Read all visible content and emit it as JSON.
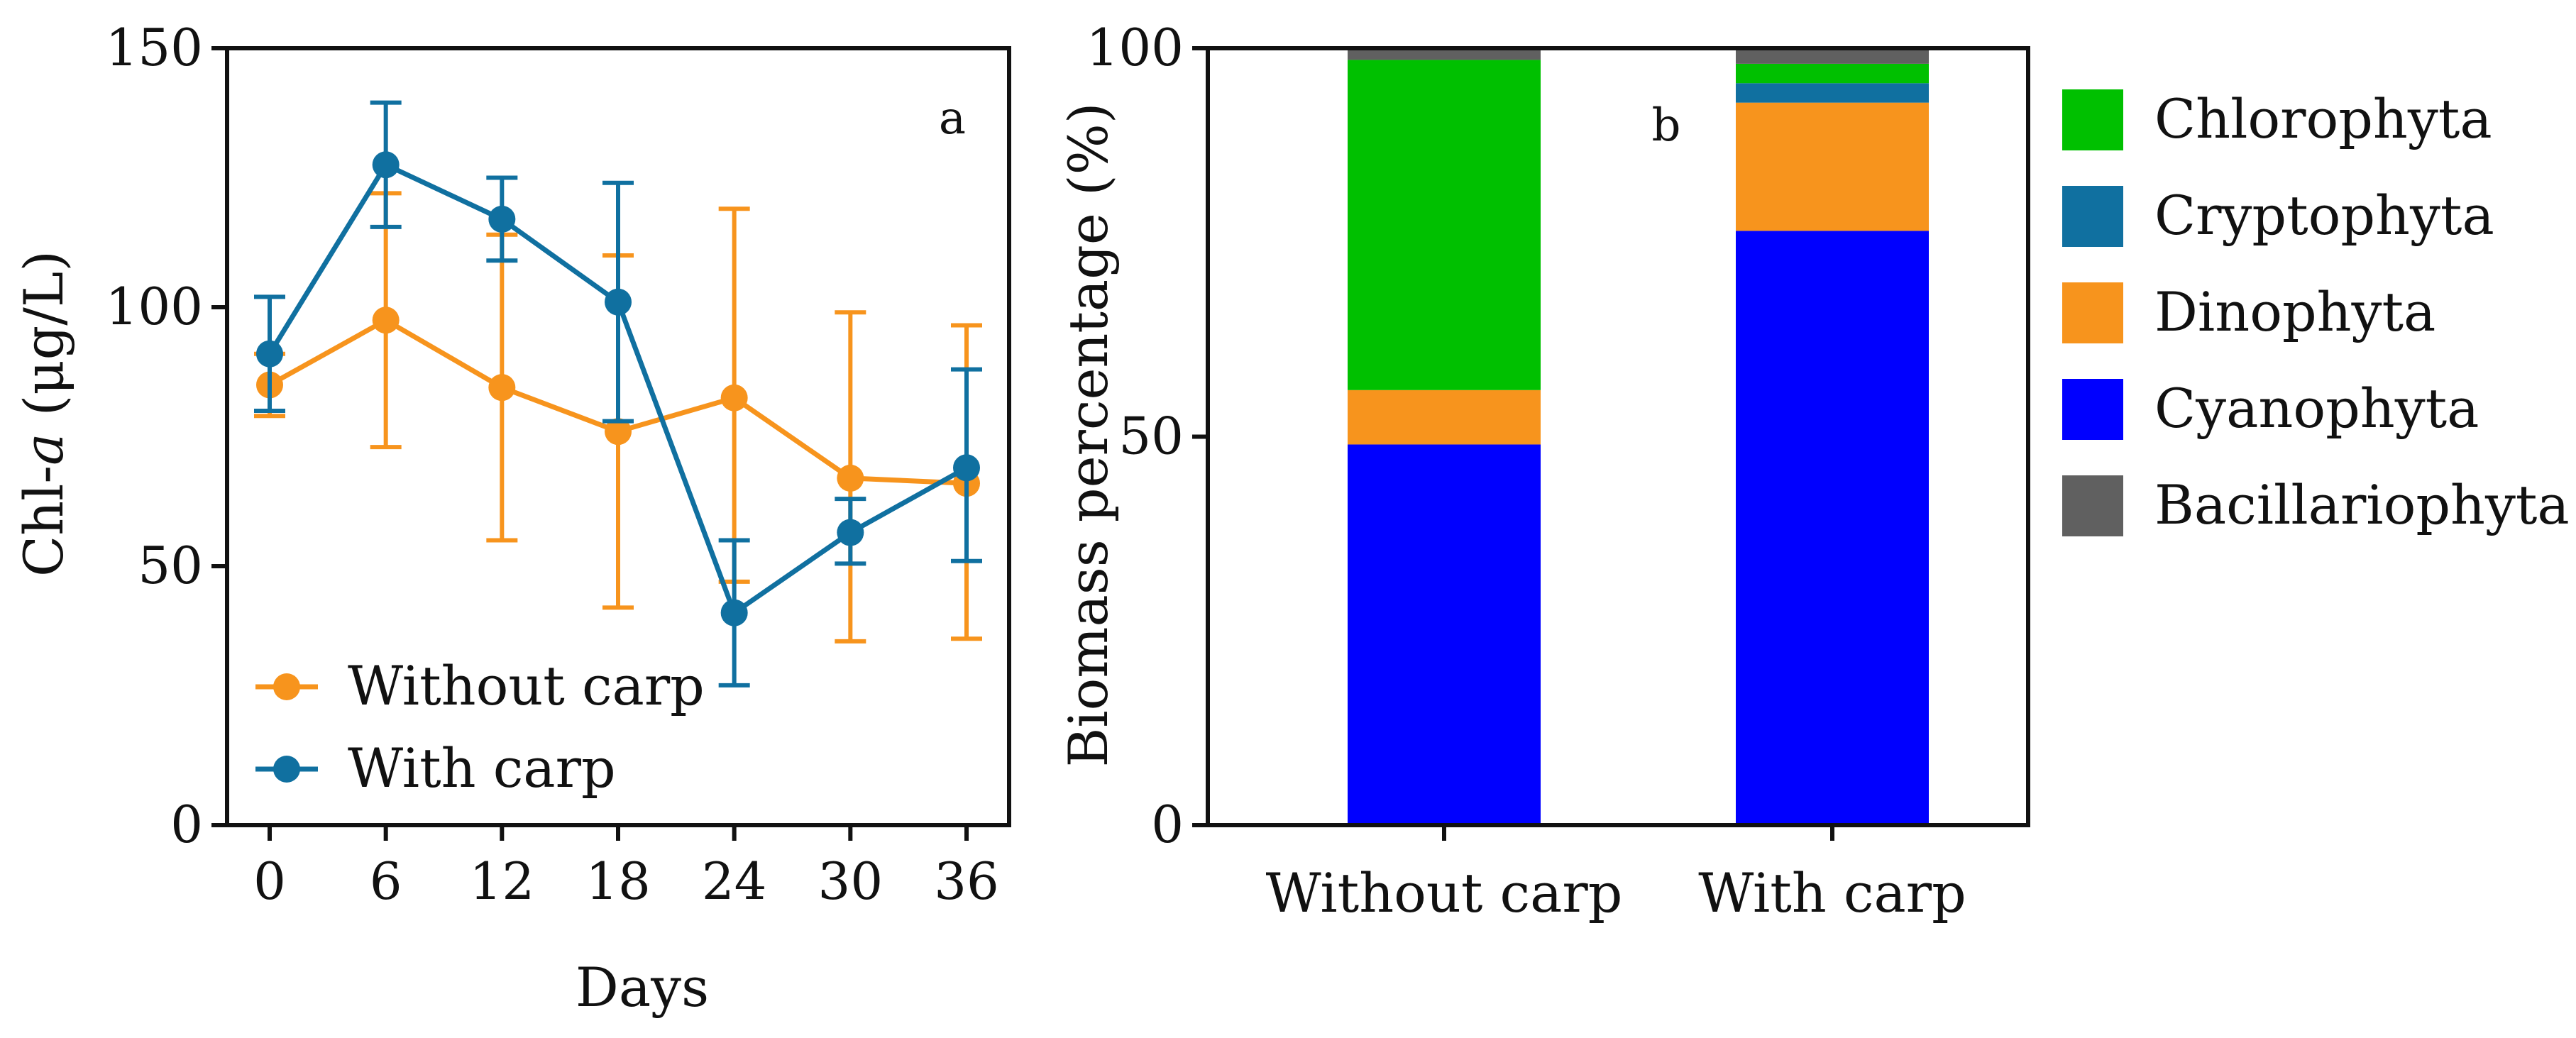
{
  "chart_data": [
    {
      "type": "line",
      "panel_label": "a",
      "xlabel": "Days",
      "ylabel_prefix": "Chl-",
      "ylabel_italic": "a",
      "ylabel_suffix": " (μg/L)",
      "x": [
        0,
        6,
        12,
        18,
        24,
        30,
        36
      ],
      "x_tick_labels": [
        "0",
        "6",
        "12",
        "18",
        "24",
        "30",
        "36"
      ],
      "ylim": [
        0,
        150
      ],
      "y_ticks": [
        0,
        50,
        100,
        150
      ],
      "y_tick_labels": [
        "0",
        "50",
        "100",
        "150"
      ],
      "legend_position": "bottom-left",
      "series": [
        {
          "name": "Without carp",
          "color": "#F7941D",
          "values": [
            85,
            97.5,
            84.5,
            76,
            82.5,
            67,
            66
          ],
          "err_upper": [
            91,
            122,
            114,
            110,
            119,
            99,
            96.5
          ],
          "err_lower": [
            79,
            73,
            55,
            42,
            47,
            35.5,
            36
          ]
        },
        {
          "name": "With carp",
          "color": "#1070A0",
          "values": [
            91,
            127.5,
            117,
            101,
            41,
            56.5,
            69
          ],
          "err_upper": [
            102,
            139.5,
            125,
            124,
            55,
            63,
            88
          ],
          "err_lower": [
            80,
            115.5,
            109,
            78,
            27,
            50.5,
            51
          ]
        }
      ]
    },
    {
      "type": "bar",
      "stacked": true,
      "panel_label": "b",
      "ylabel": "Biomass percentage (%)",
      "categories": [
        "Without carp",
        "With carp"
      ],
      "ylim": [
        0,
        100
      ],
      "y_ticks": [
        0,
        50,
        100
      ],
      "y_tick_labels": [
        "0",
        "50",
        "100"
      ],
      "legend_position": "right",
      "legend": [
        "Chlorophyta",
        "Cryptophyta",
        "Dinophyta",
        "Cyanophyta",
        "Bacillariophyta"
      ],
      "series": [
        {
          "name": "Cyanophyta",
          "color": "#0000FF",
          "values": [
            49,
            76.5
          ]
        },
        {
          "name": "Dinophyta",
          "color": "#F7941D",
          "values": [
            7,
            16.5
          ]
        },
        {
          "name": "Cryptophyta",
          "color": "#1070A0",
          "values": [
            0,
            2.5
          ]
        },
        {
          "name": "Chlorophyta",
          "color": "#00C000",
          "values": [
            42.5,
            2.5
          ]
        },
        {
          "name": "Bacillariophyta",
          "color": "#606060",
          "values": [
            1.5,
            2
          ]
        }
      ]
    }
  ]
}
